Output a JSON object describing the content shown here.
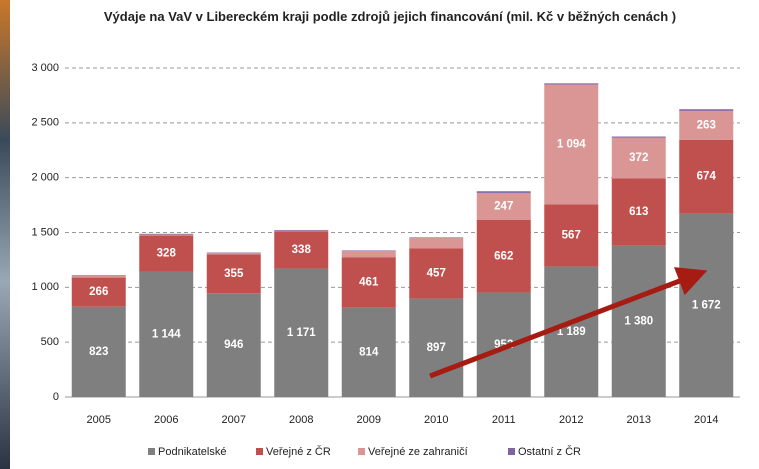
{
  "chart_data": {
    "type": "stacked_bar",
    "title": "Výdaje na VaV v Libereckém kraji podle zdrojů jejich financování (mil. Kč v běžných cenách )",
    "categories": [
      "2005",
      "2006",
      "2007",
      "2008",
      "2009",
      "2010",
      "2011",
      "2012",
      "2013",
      "2014"
    ],
    "series": [
      {
        "name": "Podnikatelské",
        "color": "#7f7f7f",
        "values": [
          823,
          1144,
          946,
          1171,
          814,
          897,
          952,
          1189,
          1380,
          1672
        ],
        "value_labels": [
          "823",
          "1 144",
          "946",
          "1 171",
          "814",
          "897",
          "952",
          "1 189",
          "1 380",
          "1 672"
        ]
      },
      {
        "name": "Veřejné z ČR",
        "color": "#c0504d",
        "values": [
          266,
          328,
          355,
          338,
          461,
          457,
          662,
          567,
          613,
          674
        ],
        "value_labels": [
          "266",
          "328",
          "355",
          "338",
          "461",
          "457",
          "662",
          "567",
          "613",
          "674"
        ]
      },
      {
        "name": "Veřejné ze zahraničí",
        "color": "#d99694",
        "values": [
          15,
          10,
          10,
          8,
          55,
          95,
          247,
          1094,
          372,
          263
        ],
        "value_labels": [
          null,
          null,
          null,
          null,
          null,
          null,
          "247",
          "1 094",
          "372",
          "263"
        ]
      },
      {
        "name": "Ostatní z ČR",
        "color": "#8064a2",
        "values": [
          6,
          6,
          6,
          6,
          6,
          6,
          15,
          10,
          10,
          15
        ],
        "value_labels": [
          null,
          null,
          null,
          null,
          null,
          null,
          null,
          null,
          null,
          null
        ]
      }
    ],
    "ylim": [
      0,
      3000
    ],
    "yticks": [
      0,
      500,
      {
        "value": 1000,
        "label": "1 000"
      },
      {
        "value": 1500,
        "label": "1 500"
      },
      {
        "value": 2000,
        "label": "2 000"
      },
      {
        "value": 2500,
        "label": "2 500"
      },
      {
        "value": 3000,
        "label": "3 000"
      }
    ],
    "grid": true
  }
}
